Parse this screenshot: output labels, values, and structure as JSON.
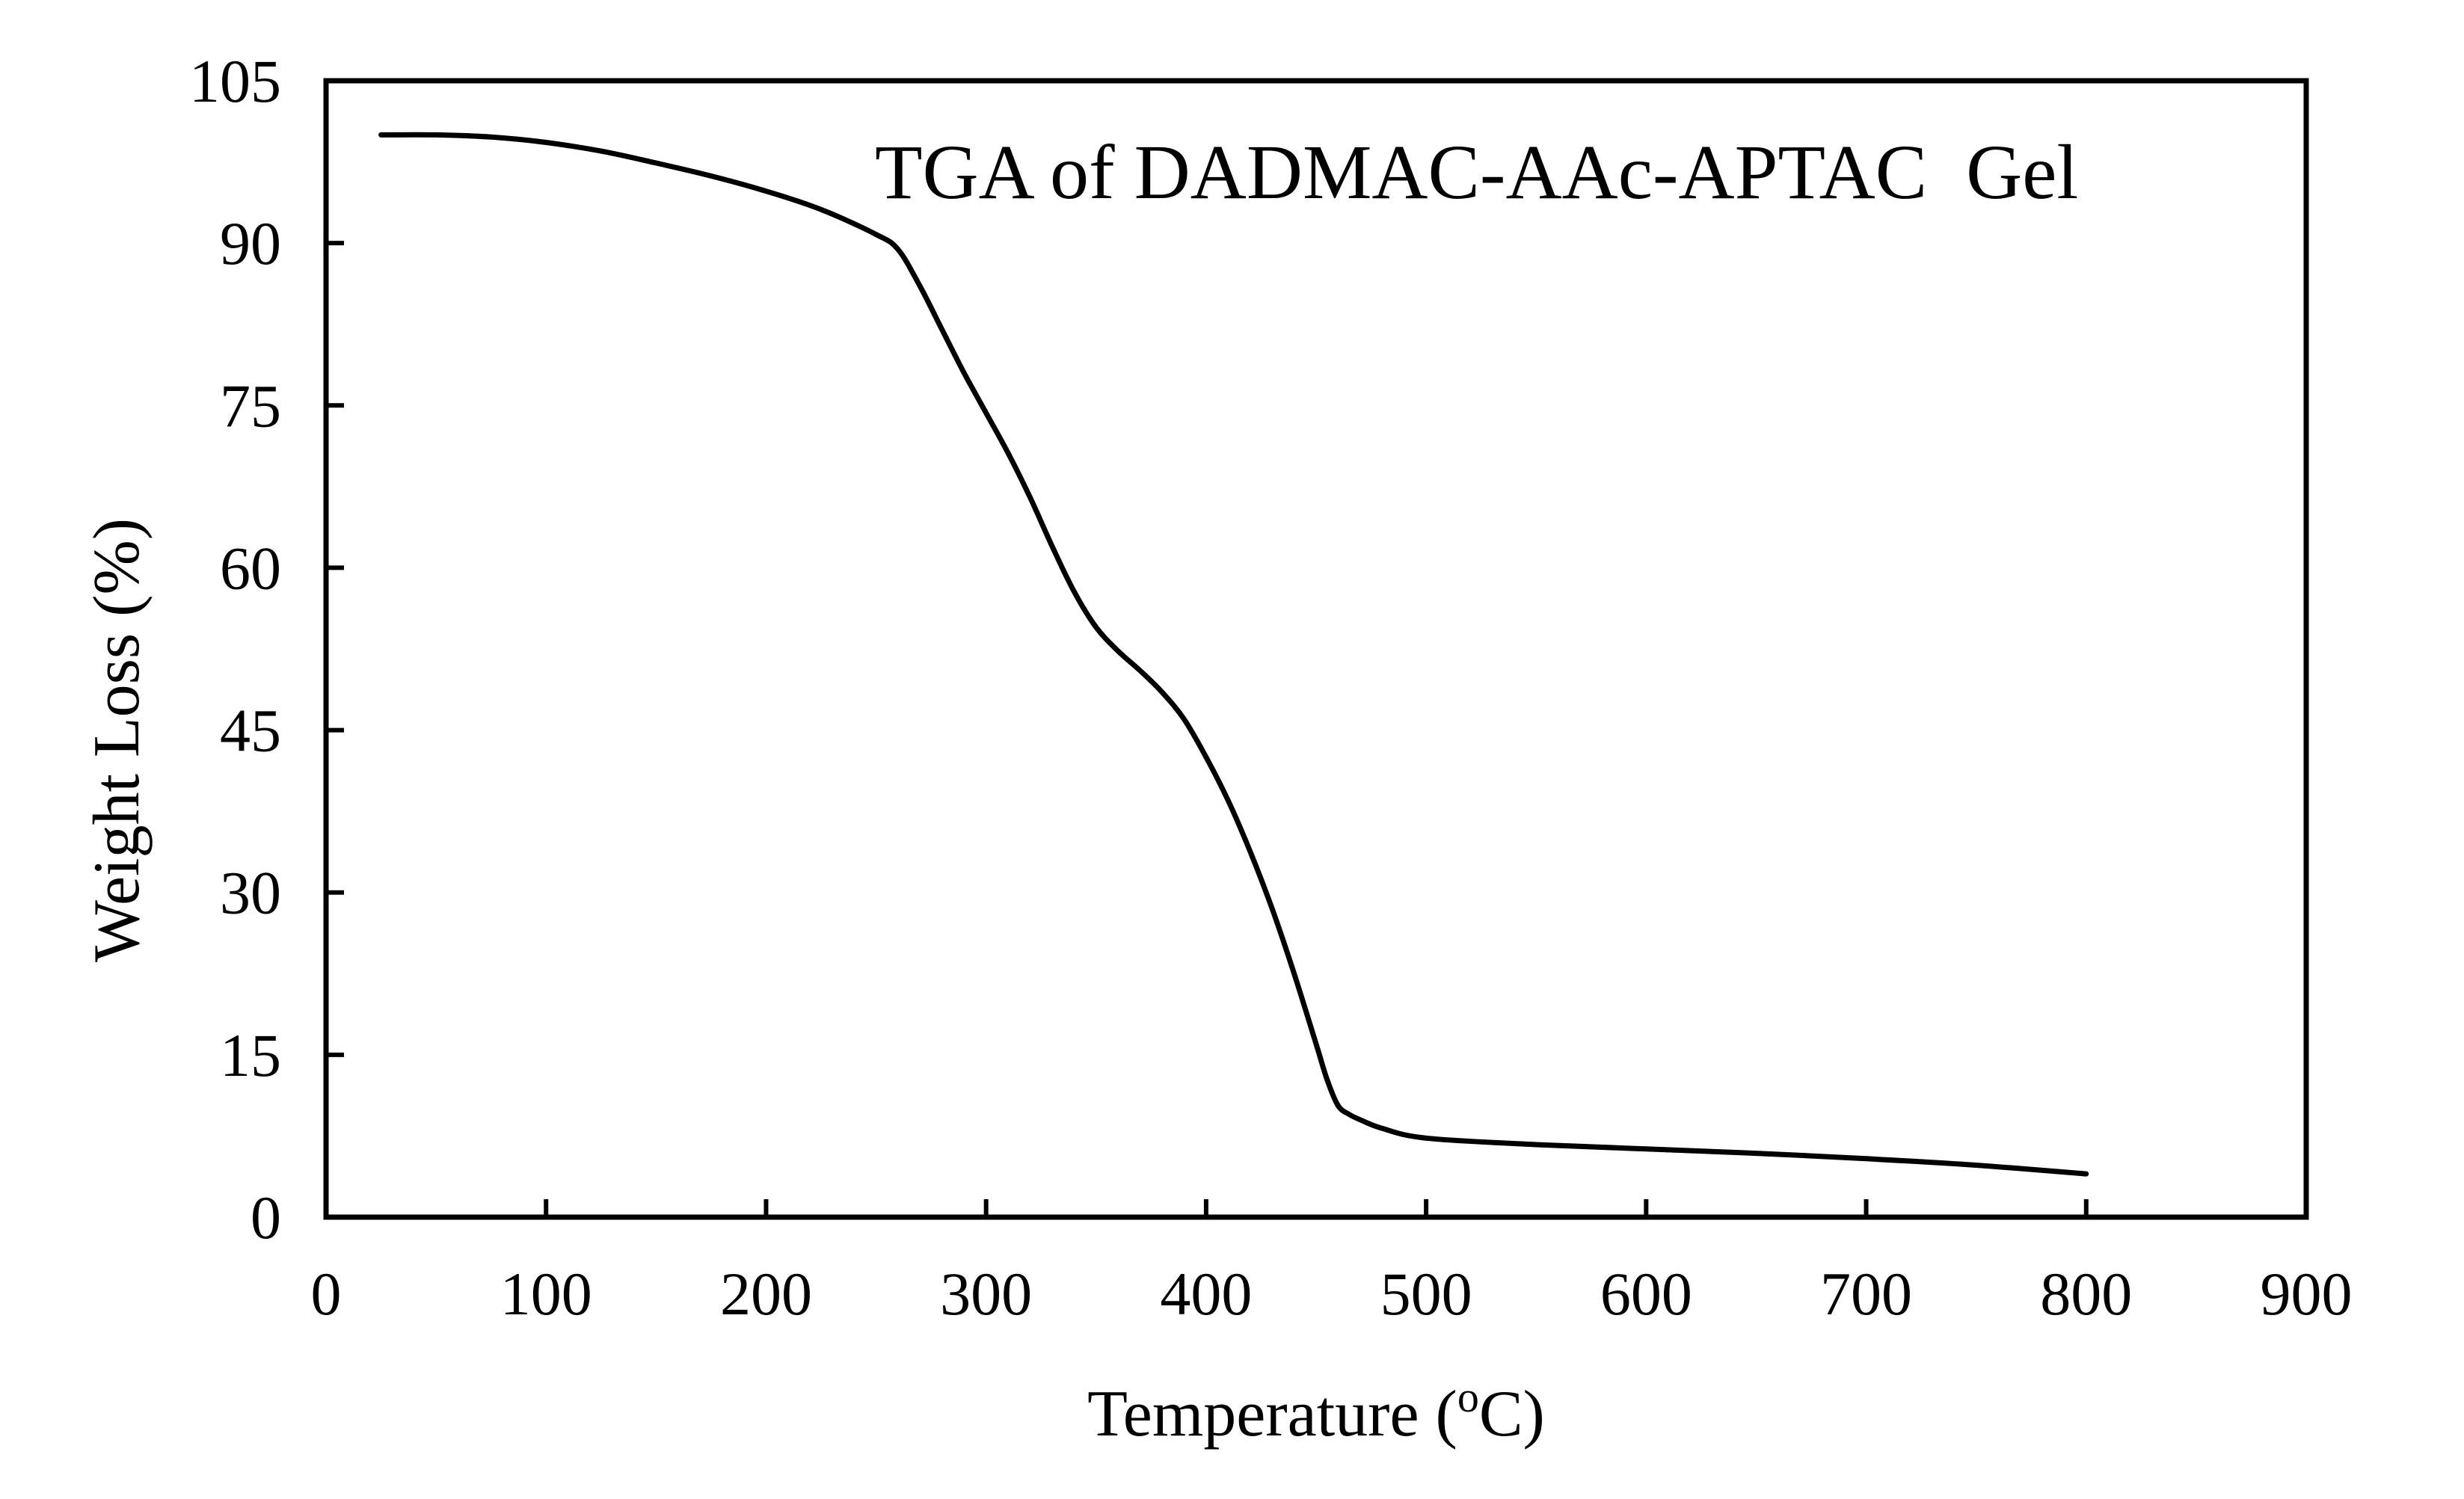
{
  "chart_data": {
    "type": "line",
    "title": "TGA of DADMAC-AAc-APTAC  Gel",
    "xlabel": "Temperature (",
    "xlabel_sup": "o",
    "xlabel_unit": "C)",
    "ylabel": "Weight Loss (%)",
    "xlim": [
      0,
      900
    ],
    "ylim": [
      0,
      105
    ],
    "xticks": [
      0,
      100,
      200,
      300,
      400,
      500,
      600,
      700,
      800,
      900
    ],
    "yticks": [
      0,
      15,
      30,
      45,
      60,
      75,
      90,
      105
    ],
    "xtick_labels": [
      "0",
      "100",
      "200",
      "300",
      "400",
      "500",
      "600",
      "700",
      "800",
      "900"
    ],
    "ytick_labels": [
      "0",
      "15",
      "30",
      "45",
      "60",
      "75",
      "90",
      "105"
    ],
    "grid": false,
    "series": [
      {
        "color": "#000000",
        "x": [
          25,
          50,
          75,
          100,
          125,
          150,
          175,
          200,
          225,
          250,
          260,
          270,
          280,
          290,
          300,
          310,
          320,
          330,
          340,
          350,
          360,
          370,
          380,
          390,
          400,
          410,
          420,
          430,
          440,
          450,
          455,
          460,
          465,
          470,
          480,
          500,
          550,
          600,
          650,
          700,
          750,
          800
        ],
        "y": [
          100,
          100,
          99.8,
          99.3,
          98.5,
          97.4,
          96.2,
          94.8,
          93.1,
          90.8,
          89.4,
          86,
          82,
          78,
          74.3,
          70.6,
          66.5,
          62,
          57.8,
          54.5,
          52.3,
          50.5,
          48.5,
          46,
          42.5,
          38.5,
          33.8,
          28.5,
          22.5,
          16,
          12.7,
          10.3,
          9.5,
          9,
          8.2,
          7.3,
          6.7,
          6.3,
          5.9,
          5.4,
          4.8,
          4
        ]
      }
    ]
  }
}
